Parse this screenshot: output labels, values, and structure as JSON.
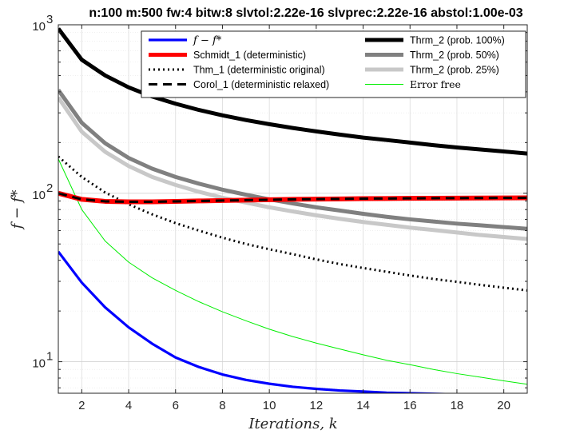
{
  "chart_data": {
    "type": "line",
    "title": "n:100 m:500 fw:4 bitw:8 slvtol:2.22e-16 slvprec:2.22e-16 abstol:1.00e-03",
    "xlabel": "Iterations, k",
    "ylabel": "f − f*",
    "y_scale": "log",
    "xlim": [
      1,
      21
    ],
    "ylim": [
      6.5,
      1000
    ],
    "x_ticks": [
      "2",
      "4",
      "6",
      "8",
      "10",
      "12",
      "14",
      "16",
      "18",
      "20"
    ],
    "y_ticks": [
      {
        "base": "10",
        "exp": "1"
      },
      {
        "base": "10",
        "exp": "2"
      },
      {
        "base": "10",
        "exp": "3"
      }
    ],
    "grid": true,
    "legend_position": "top",
    "x": [
      1,
      2,
      3,
      4,
      5,
      6,
      7,
      8,
      9,
      10,
      11,
      12,
      13,
      14,
      15,
      16,
      17,
      18,
      19,
      20,
      21
    ],
    "series": [
      {
        "name": "f − f*",
        "label_style": "math",
        "color": "#0000ff",
        "width": 3.2,
        "dash": "",
        "values": [
          45,
          29.5,
          21,
          16,
          12.8,
          10.6,
          9.3,
          8.4,
          7.8,
          7.4,
          7.1,
          6.9,
          6.75,
          6.65,
          6.55,
          6.5,
          6.45,
          6.4,
          6.38,
          6.35,
          6.33
        ]
      },
      {
        "name": "Schmidt_1 (deterministic)",
        "label_style": "sans",
        "color": "#ff0000",
        "width": 6,
        "dash": "",
        "values": [
          100,
          92,
          89.5,
          89,
          89,
          89.5,
          90,
          90.5,
          91,
          91.5,
          92,
          92.3,
          92.6,
          92.9,
          93.1,
          93.3,
          93.5,
          93.6,
          93.7,
          93.8,
          93.9
        ]
      },
      {
        "name": "Thm_1 (deterministic original)",
        "label_style": "sans",
        "color": "#000000",
        "width": 3,
        "dash": "2 4",
        "values": [
          165,
          125,
          101,
          86,
          75,
          66.5,
          60,
          54.5,
          50,
          46.5,
          43.5,
          40.5,
          38,
          36,
          34.2,
          32.5,
          31,
          29.8,
          28.6,
          27.5,
          26.5
        ]
      },
      {
        "name": "Corol_1 (deterministic relaxed)",
        "label_style": "sans",
        "color": "#000000",
        "width": 3,
        "dash": "11 7",
        "values": [
          100,
          92,
          89.5,
          89,
          89,
          89.5,
          90,
          90.5,
          91,
          91.5,
          92,
          92.3,
          92.6,
          92.9,
          93.1,
          93.3,
          93.5,
          93.6,
          93.7,
          93.8,
          93.9
        ]
      },
      {
        "name": "Thrm_2 (prob. 100%)",
        "label_style": "sans",
        "color": "#000000",
        "width": 5,
        "dash": "",
        "values": [
          950,
          620,
          500,
          425,
          375,
          340,
          312,
          290,
          272,
          257,
          244,
          233,
          223,
          214,
          207,
          200,
          193,
          187,
          182,
          177,
          172
        ]
      },
      {
        "name": "Thrm_2 (prob. 50%)",
        "label_style": "sans",
        "color": "#808080",
        "width": 5,
        "dash": "",
        "values": [
          410,
          262,
          198,
          162,
          140,
          125,
          114,
          105,
          98,
          92,
          87,
          82.5,
          79,
          75.5,
          72.5,
          70,
          68,
          66,
          64.5,
          63,
          61.5
        ]
      },
      {
        "name": "Thrm_2 (prob. 25%)",
        "label_style": "sans",
        "color": "#c8c8c8",
        "width": 5,
        "dash": "",
        "values": [
          370,
          232,
          176,
          145,
          125,
          112,
          102,
          94,
          88,
          82.5,
          78,
          74,
          70.5,
          67.5,
          65,
          62.5,
          60.5,
          58.5,
          56.5,
          55,
          53.5
        ]
      },
      {
        "name": "Error free",
        "label_style": "serif",
        "color": "#00ee00",
        "width": 1,
        "dash": "",
        "values": [
          160,
          80,
          52,
          39,
          31.5,
          26.5,
          22.7,
          19.8,
          17.5,
          15.6,
          14.1,
          12.9,
          11.9,
          11,
          10.2,
          9.6,
          9,
          8.5,
          8.1,
          7.7,
          7.35
        ]
      }
    ]
  }
}
